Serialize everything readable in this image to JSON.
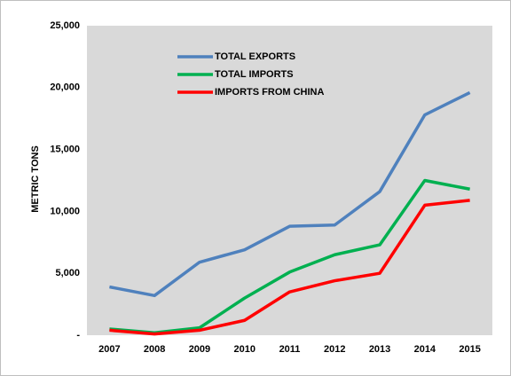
{
  "chart_data": {
    "type": "line",
    "y_label": "METRIC TONS",
    "categories": [
      "2007",
      "2008",
      "2009",
      "2010",
      "2011",
      "2012",
      "2013",
      "2014",
      "2015"
    ],
    "series": [
      {
        "name": "TOTAL EXPORTS",
        "color": "#4f81bd",
        "values": [
          3900,
          3200,
          5900,
          6900,
          8800,
          8900,
          11600,
          17800,
          19600
        ]
      },
      {
        "name": "TOTAL IMPORTS",
        "color": "#00b050",
        "values": [
          500,
          200,
          600,
          3000,
          5100,
          6500,
          7300,
          12500,
          11800
        ]
      },
      {
        "name": "IMPORTS FROM CHINA",
        "color": "#ff0000",
        "values": [
          400,
          100,
          400,
          1200,
          3500,
          4400,
          5000,
          10500,
          10900
        ]
      }
    ],
    "ylim": [
      0,
      25000
    ],
    "yticks": [
      {
        "value": 0,
        "label": "-"
      },
      {
        "value": 5000,
        "label": "5,000"
      },
      {
        "value": 10000,
        "label": "10,000"
      },
      {
        "value": 15000,
        "label": "15,000"
      },
      {
        "value": 20000,
        "label": "20,000"
      },
      {
        "value": 25000,
        "label": "25,000"
      }
    ],
    "background": "#d9d9d9",
    "legend": "top-left"
  }
}
